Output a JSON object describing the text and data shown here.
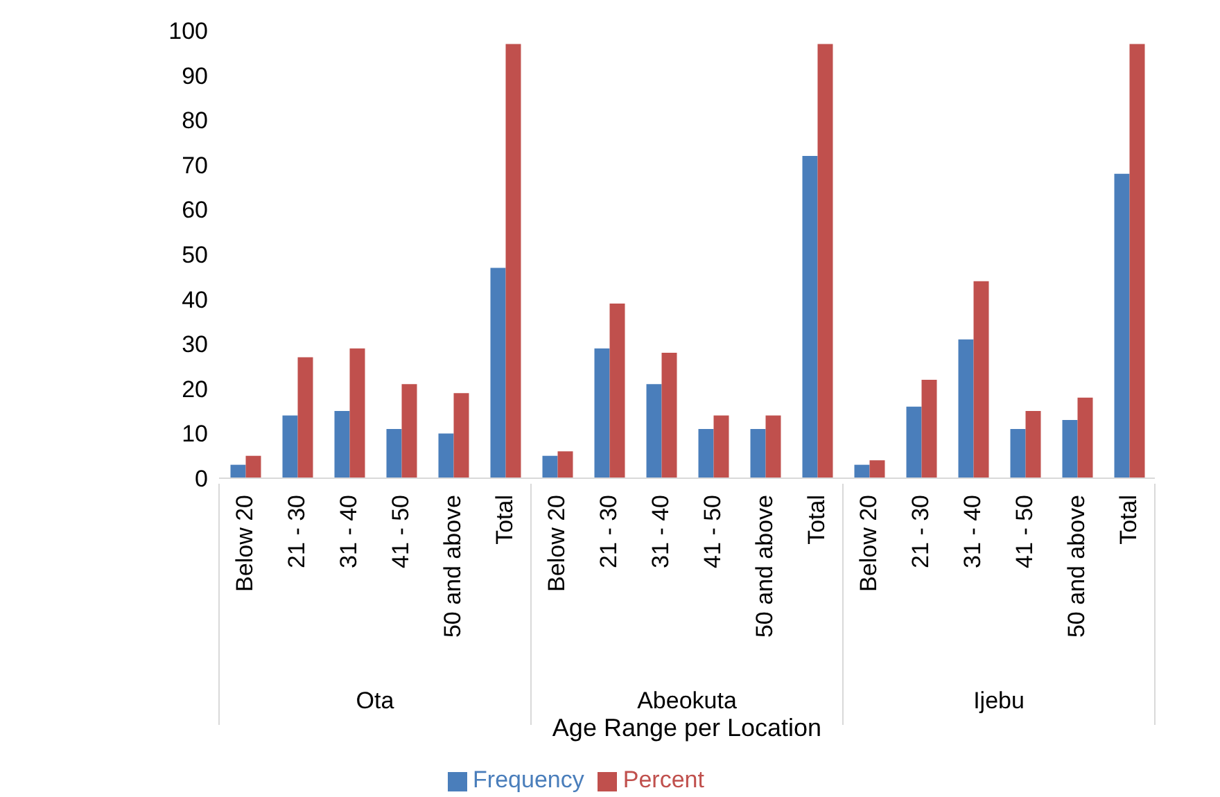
{
  "chart_data": {
    "type": "bar",
    "xlabel": "Age Range per Location",
    "categories": [
      "Below 20",
      "21 - 30",
      "31 - 40",
      "41 - 50",
      "50 and above",
      "Total",
      "Below 20",
      "21 - 30",
      "31 - 40",
      "41 - 50",
      "50 and above",
      "Total",
      "Below 20",
      "21 - 30",
      "31 - 40",
      "41 - 50",
      "50 and above",
      "Total"
    ],
    "annotations": [
      "Ota",
      "Abeokuta",
      "Ijebu"
    ],
    "series": [
      {
        "name": "Frequency",
        "color": "#4a7ebb",
        "values": [
          3,
          14,
          15,
          11,
          10,
          47,
          5,
          29,
          21,
          11,
          11,
          72,
          3,
          16,
          31,
          11,
          13,
          68
        ]
      },
      {
        "name": "Percent",
        "color": "#c0504d",
        "values": [
          5,
          27,
          29,
          21,
          19,
          97,
          6,
          39,
          28,
          14,
          14,
          97,
          4,
          22,
          44,
          15,
          18,
          97
        ]
      }
    ],
    "ylim": [
      0,
      100
    ],
    "yticks": [
      0,
      10,
      20,
      30,
      40,
      50,
      60,
      70,
      80,
      90,
      100
    ],
    "grid": false,
    "legend": "bottom"
  }
}
